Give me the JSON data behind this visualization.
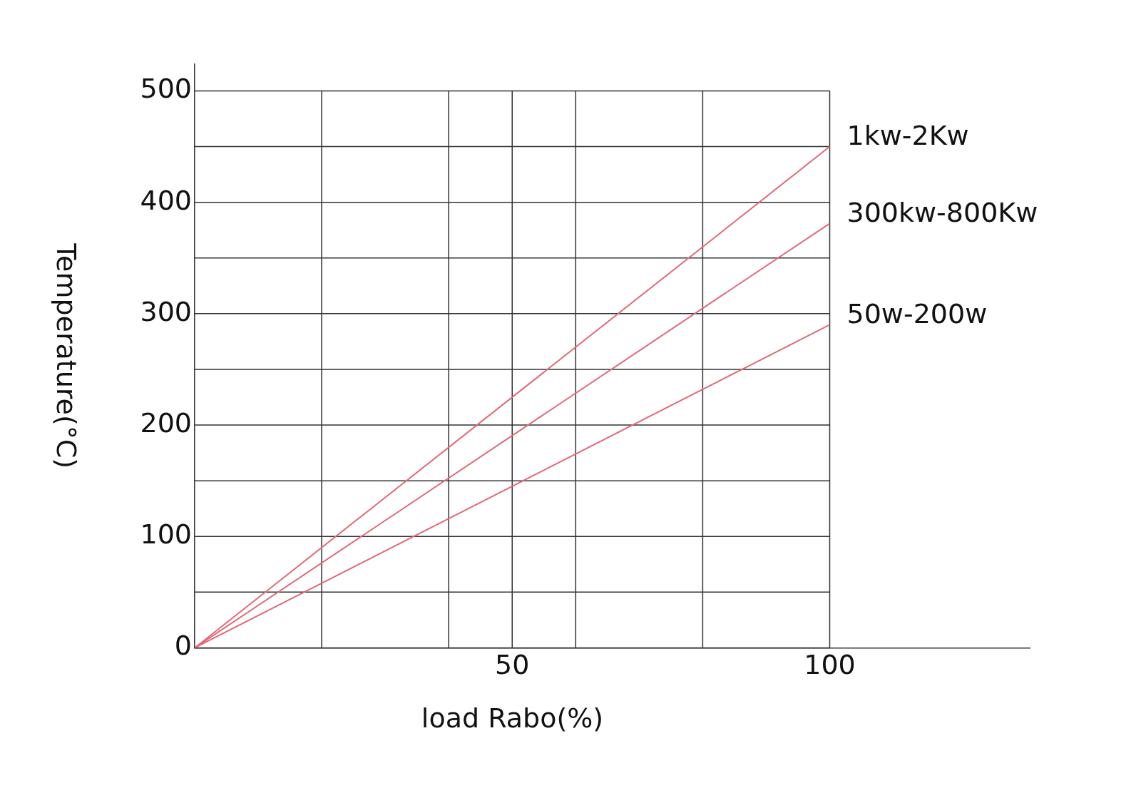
{
  "chart_data": {
    "type": "line",
    "xlabel": "load Rabo(%)",
    "ylabel": "Temperature(°C)",
    "x": [
      0,
      100
    ],
    "series": [
      {
        "name": "1kw-2Kw",
        "color": "#e06a78",
        "values": [
          0,
          450
        ]
      },
      {
        "name": "300kw-800Kw",
        "color": "#e06a78",
        "values": [
          0,
          381
        ]
      },
      {
        "name": "50w-200w",
        "color": "#e06a78",
        "values": [
          0,
          290
        ]
      }
    ],
    "xlim": [
      0,
      131.5
    ],
    "xticks": [
      {
        "value": 20,
        "label": null
      },
      {
        "value": 40,
        "label": null
      },
      50,
      {
        "value": 60,
        "label": null
      },
      {
        "value": 80,
        "label": null
      },
      100
    ],
    "ylim": [
      0,
      524
    ],
    "yticks": [
      0,
      {
        "value": 50,
        "label": null
      },
      100,
      {
        "value": 150,
        "label": null
      },
      200,
      {
        "value": 250,
        "label": null
      },
      300,
      {
        "value": 350,
        "label": null
      },
      400,
      {
        "value": 450,
        "label": null
      },
      500
    ],
    "grid": true,
    "legend": false,
    "marker": "none",
    "line_style": "solid"
  }
}
